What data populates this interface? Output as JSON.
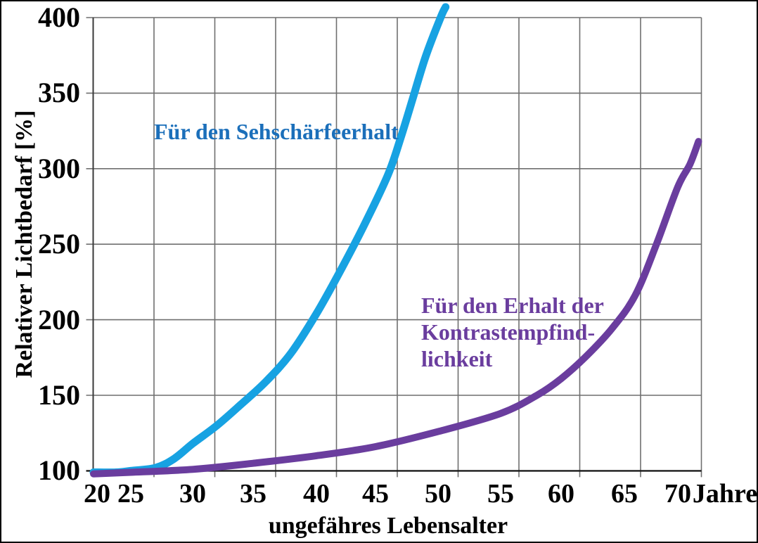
{
  "figure": {
    "background": "#ffffff",
    "border_color": "#000000"
  },
  "chart_data": {
    "type": "line",
    "title": "",
    "xlabel": "ungefähres Lebensalter",
    "x_unit": "Jahre",
    "ylabel": "Relativer Lichtbedarf [%]",
    "xlim": [
      20,
      72
    ],
    "ylim": [
      100,
      400
    ],
    "x_ticks": [
      20,
      25,
      30,
      35,
      40,
      45,
      50,
      55,
      60,
      65,
      70
    ],
    "y_ticks": [
      100,
      150,
      200,
      250,
      300,
      350,
      400
    ],
    "grid": true,
    "legend": "inline-annotations",
    "series": [
      {
        "name": "Für den Sehschärfeerhalt",
        "color": "#17a2e2",
        "label_color": "#1b6fba",
        "points": [
          [
            20,
            99
          ],
          [
            23,
            99
          ],
          [
            25,
            100
          ],
          [
            27,
            102
          ],
          [
            28.5,
            108
          ],
          [
            30,
            118
          ],
          [
            32,
            130
          ],
          [
            34,
            144
          ],
          [
            36,
            159
          ],
          [
            38,
            178
          ],
          [
            40,
            204
          ],
          [
            42,
            232
          ],
          [
            44,
            262
          ],
          [
            46,
            296
          ],
          [
            47,
            320
          ],
          [
            48,
            347
          ],
          [
            49,
            374
          ],
          [
            50.2,
            400
          ],
          [
            50.6,
            407
          ]
        ]
      },
      {
        "name": "Für den Erhalt der Kontrastempfindlichkeit",
        "color": "#6a3d9e",
        "label_color": "#6a3d9e",
        "points": [
          [
            20,
            98
          ],
          [
            25,
            99
          ],
          [
            30,
            101
          ],
          [
            35,
            105
          ],
          [
            40,
            110
          ],
          [
            45,
            116
          ],
          [
            50,
            126
          ],
          [
            55,
            138
          ],
          [
            58,
            150
          ],
          [
            60,
            161
          ],
          [
            62,
            176
          ],
          [
            64,
            194
          ],
          [
            66,
            216
          ],
          [
            68,
            250
          ],
          [
            70,
            288
          ],
          [
            71,
            303
          ],
          [
            71.7,
            318
          ]
        ]
      }
    ]
  },
  "axis": {
    "y_tick_labels": [
      "400",
      "350",
      "300",
      "250",
      "200",
      "150",
      "100"
    ],
    "x_tick_labels": [
      "20",
      "25",
      "30",
      "35",
      "40",
      "45",
      "50",
      "55",
      "60",
      "65",
      "70"
    ],
    "x_unit_label": "Jahre",
    "x_title": "ungefähres Lebensalter",
    "y_title": "Relativer Lichtbedarf [%]"
  },
  "annotations": {
    "acuity_label": "Für den Sehschärfeerhalt",
    "contrast_label": "Für den Erhalt der\nKontrastempfind-\nlichkeit"
  },
  "colors": {
    "gridline": "#6f6f6f",
    "axis": "#1a1a1a",
    "tick_text": "#000000"
  }
}
